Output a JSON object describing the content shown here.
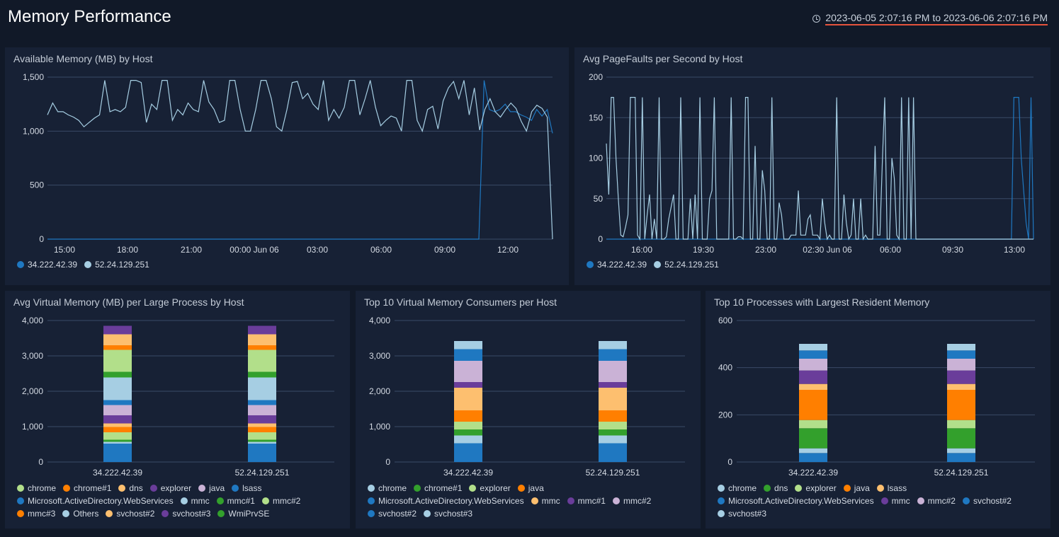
{
  "header": {
    "title": "Memory Performance",
    "time_range": "2023-06-05 2:07:16 PM to 2023-06-06 2:07:16 PM"
  },
  "colors": {
    "host1": "#1f78c1",
    "host2": "#a6cee3"
  },
  "panels": {
    "available_memory": {
      "title": "Available Memory (MB) by Host",
      "y_ticks": [
        "1,500",
        "1,000",
        "500",
        "0"
      ],
      "x_ticks": [
        "15:00",
        "18:00",
        "21:00",
        "00:00 Jun 06",
        "03:00",
        "06:00",
        "09:00",
        "12:00"
      ],
      "legend": [
        "34.222.42.39",
        "52.24.129.251"
      ]
    },
    "page_faults": {
      "title": "Avg PageFaults per Second by Host",
      "y_ticks": [
        "200",
        "150",
        "100",
        "50",
        "0"
      ],
      "x_ticks": [
        "16:00",
        "19:30",
        "23:00",
        "02:30 Jun 06",
        "06:00",
        "09:30",
        "13:00"
      ],
      "legend": [
        "34.222.42.39",
        "52.24.129.251"
      ]
    },
    "virtual_memory": {
      "title": "Avg Virtual Memory (MB) per Large Process by Host",
      "y_ticks": [
        "4,000",
        "3,000",
        "2,000",
        "1,000",
        "0"
      ],
      "categories": [
        "34.222.42.39",
        "52.24.129.251"
      ],
      "legend": [
        "chrome",
        "chrome#1",
        "dns",
        "explorer",
        "java",
        "lsass",
        "Microsoft.ActiveDirectory.WebServices",
        "mmc",
        "mmc#1",
        "mmc#2",
        "mmc#3",
        "Others",
        "svchost#2",
        "svchost#3",
        "WmiPrvSE"
      ]
    },
    "top10_virtual": {
      "title": "Top 10 Virtual Memory Consumers per Host",
      "y_ticks": [
        "4,000",
        "3,000",
        "2,000",
        "1,000",
        "0"
      ],
      "categories": [
        "34.222.42.39",
        "52.24.129.251"
      ],
      "legend": [
        "chrome",
        "chrome#1",
        "explorer",
        "java",
        "Microsoft.ActiveDirectory.WebServices",
        "mmc",
        "mmc#1",
        "mmc#2",
        "svchost#2",
        "svchost#3"
      ]
    },
    "top10_resident": {
      "title": "Top 10 Processes with Largest Resident Memory",
      "y_ticks": [
        "600",
        "400",
        "200",
        "0"
      ],
      "categories": [
        "34.222.42.39",
        "52.24.129.251"
      ],
      "legend": [
        "chrome",
        "dns",
        "explorer",
        "java",
        "lsass",
        "Microsoft.ActiveDirectory.WebServices",
        "mmc",
        "mmc#2",
        "svchost#2",
        "svchost#3"
      ]
    }
  },
  "chart_data": [
    {
      "type": "line",
      "title": "Available Memory (MB) by Host",
      "ylim": [
        0,
        1500
      ],
      "series": [
        {
          "name": "34.222.42.39",
          "color": "#1f78c1",
          "values": [
            0,
            0,
            0,
            0,
            0,
            0,
            0,
            0,
            0,
            0,
            0,
            0,
            0,
            0,
            0,
            0,
            0,
            0,
            0,
            0,
            0,
            0,
            0,
            0,
            0,
            0,
            0,
            0,
            0,
            0,
            0,
            0,
            0,
            0,
            0,
            0,
            0,
            0,
            0,
            0,
            0,
            0,
            0,
            0,
            0,
            0,
            0,
            0,
            0,
            0,
            0,
            0,
            0,
            0,
            0,
            0,
            0,
            0,
            0,
            0,
            0,
            0,
            0,
            0,
            0,
            0,
            0,
            0,
            0,
            0,
            0,
            0,
            0,
            0,
            0,
            0,
            0,
            0,
            0,
            0,
            0,
            0,
            0,
            1470,
            1200,
            1180,
            1200,
            1250,
            1180,
            1180,
            1150,
            1130,
            1100,
            1200,
            1140,
            1200,
            980
          ]
        },
        {
          "name": "52.24.129.251",
          "color": "#a6cee3",
          "values": [
            1150,
            1260,
            1180,
            1180,
            1150,
            1130,
            1100,
            1040,
            1080,
            1120,
            1150,
            1470,
            1180,
            1200,
            1180,
            1220,
            1470,
            1470,
            1450,
            1080,
            1250,
            1200,
            1470,
            1470,
            1100,
            1200,
            1150,
            1260,
            1200,
            1180,
            1470,
            1270,
            1200,
            1080,
            1100,
            1470,
            1470,
            1200,
            1000,
            1000,
            1200,
            1470,
            1470,
            1300,
            1040,
            1000,
            1200,
            1450,
            1460,
            1300,
            1350,
            1250,
            1200,
            1470,
            1100,
            1200,
            1120,
            1220,
            1470,
            1470,
            1150,
            1300,
            1470,
            1220,
            1050,
            1100,
            1140,
            1120,
            1000,
            1470,
            1470,
            1100,
            1000,
            1200,
            1230,
            1020,
            1280,
            1400,
            1460,
            1300,
            1470,
            1150,
            1400,
            1010,
            1200,
            1300,
            1180,
            1130,
            1200,
            1260,
            1210,
            1090,
            1000,
            1180,
            1240,
            1210,
            1130,
            0
          ]
        }
      ]
    },
    {
      "type": "line",
      "title": "Avg PageFaults per Second by Host",
      "ylim": [
        0,
        200
      ],
      "series": [
        {
          "name": "34.222.42.39",
          "color": "#1f78c1",
          "values": [
            0,
            0,
            0,
            0,
            0,
            0,
            0,
            0,
            0,
            0,
            0,
            0,
            0,
            0,
            0,
            0,
            0,
            0,
            0,
            0,
            0,
            0,
            0,
            0,
            0,
            0,
            0,
            0,
            0,
            0,
            0,
            0,
            0,
            0,
            0,
            0,
            0,
            0,
            0,
            0,
            0,
            0,
            0,
            0,
            0,
            0,
            0,
            0,
            0,
            0,
            0,
            0,
            0,
            0,
            0,
            0,
            0,
            0,
            0,
            0,
            0,
            0,
            0,
            0,
            0,
            0,
            0,
            0,
            0,
            0,
            0,
            0,
            0,
            0,
            0,
            0,
            0,
            0,
            0,
            0,
            0,
            0,
            0,
            0,
            0,
            0,
            0,
            0,
            0,
            0,
            0,
            0,
            0,
            0,
            0,
            0,
            0,
            0,
            0,
            0,
            0,
            0,
            0,
            0,
            0,
            0,
            0,
            0,
            0,
            0,
            0,
            0,
            0,
            0,
            0,
            0,
            0,
            0,
            0,
            0,
            0,
            0,
            0,
            0,
            0,
            0,
            0,
            0,
            0,
            0,
            0,
            0,
            0,
            0,
            0,
            0,
            0,
            0,
            0,
            0,
            0,
            0,
            0,
            0,
            0,
            0,
            0,
            0,
            0,
            0,
            0,
            0,
            0,
            0,
            0,
            0,
            0,
            0,
            0,
            0,
            0,
            0,
            0,
            0,
            0,
            0,
            175,
            175,
            175,
            100,
            60,
            20,
            0,
            175,
            0
          ]
        },
        {
          "name": "52.24.129.251",
          "color": "#a6cee3",
          "values": [
            118,
            55,
            175,
            175,
            100,
            50,
            5,
            3,
            15,
            30,
            175,
            175,
            175,
            5,
            0,
            175,
            0,
            30,
            55,
            0,
            25,
            0,
            175,
            0,
            0,
            3,
            25,
            40,
            55,
            0,
            0,
            175,
            0,
            0,
            0,
            50,
            0,
            55,
            0,
            175,
            0,
            0,
            0,
            50,
            60,
            175,
            0,
            0,
            0,
            0,
            0,
            0,
            175,
            0,
            0,
            3,
            3,
            0,
            175,
            175,
            0,
            0,
            115,
            0,
            0,
            85,
            60,
            0,
            0,
            175,
            0,
            0,
            45,
            30,
            0,
            0,
            0,
            5,
            5,
            5,
            60,
            5,
            5,
            5,
            25,
            30,
            5,
            5,
            5,
            0,
            50,
            20,
            0,
            5,
            0,
            0,
            175,
            0,
            0,
            55,
            20,
            0,
            5,
            50,
            0,
            0,
            50,
            0,
            5,
            0,
            0,
            0,
            115,
            5,
            5,
            95,
            175,
            0,
            0,
            100,
            75,
            5,
            0,
            175,
            0,
            0,
            175,
            0,
            175,
            0,
            0,
            0,
            0,
            0,
            0,
            0,
            0,
            0,
            0,
            0,
            0,
            0,
            0,
            0,
            0,
            0,
            0,
            0,
            0,
            0,
            0,
            0,
            0,
            0,
            0,
            0,
            0,
            0,
            0,
            0,
            0,
            0,
            0,
            0,
            0,
            0,
            0,
            0,
            0,
            0,
            0,
            0,
            0,
            0,
            0,
            0,
            0,
            0,
            0
          ]
        }
      ]
    },
    {
      "type": "bar",
      "stacked": true,
      "title": "Avg Virtual Memory (MB) per Large Process by Host",
      "categories": [
        "34.222.42.39",
        "52.24.129.251"
      ],
      "ylim": [
        0,
        4000
      ],
      "series": [
        {
          "name": "Microsoft.ActiveDirectory.WebServices",
          "color": "#1f78c1",
          "values": [
            520,
            520
          ]
        },
        {
          "name": "mmc",
          "color": "#a6cee3",
          "values": [
            50,
            50
          ]
        },
        {
          "name": "WmiPrvSE",
          "color": "#33a02c",
          "values": [
            60,
            60
          ]
        },
        {
          "name": "chrome",
          "color": "#b2df8a",
          "values": [
            210,
            210
          ]
        },
        {
          "name": "chrome#1",
          "color": "#ff7f00",
          "values": [
            150,
            150
          ]
        },
        {
          "name": "dns",
          "color": "#fdbf6f",
          "values": [
            100,
            100
          ]
        },
        {
          "name": "explorer",
          "color": "#6a3d9a",
          "values": [
            230,
            230
          ]
        },
        {
          "name": "java",
          "color": "#cab2d6",
          "values": [
            290,
            290
          ]
        },
        {
          "name": "lsass",
          "color": "#1f78c1",
          "values": [
            140,
            140
          ]
        },
        {
          "name": "Others",
          "color": "#a6cee3",
          "values": [
            640,
            640
          ]
        },
        {
          "name": "mmc#1",
          "color": "#33a02c",
          "values": [
            160,
            160
          ]
        },
        {
          "name": "mmc#2",
          "color": "#b2df8a",
          "values": [
            620,
            620
          ]
        },
        {
          "name": "mmc#3",
          "color": "#ff7f00",
          "values": [
            130,
            130
          ]
        },
        {
          "name": "svchost#2",
          "color": "#fdbf6f",
          "values": [
            310,
            310
          ]
        },
        {
          "name": "svchost#3",
          "color": "#6a3d9a",
          "values": [
            240,
            240
          ]
        }
      ]
    },
    {
      "type": "bar",
      "stacked": true,
      "title": "Top 10 Virtual Memory Consumers per Host",
      "categories": [
        "34.222.42.39",
        "52.24.129.251"
      ],
      "ylim": [
        0,
        4000
      ],
      "series": [
        {
          "name": "Microsoft.ActiveDirectory.WebServices",
          "color": "#1f78c1",
          "values": [
            530,
            530
          ]
        },
        {
          "name": "chrome",
          "color": "#a6cee3",
          "values": [
            220,
            220
          ]
        },
        {
          "name": "chrome#1",
          "color": "#33a02c",
          "values": [
            170,
            170
          ]
        },
        {
          "name": "explorer",
          "color": "#b2df8a",
          "values": [
            220,
            220
          ]
        },
        {
          "name": "java",
          "color": "#ff7f00",
          "values": [
            320,
            320
          ]
        },
        {
          "name": "mmc",
          "color": "#fdbf6f",
          "values": [
            640,
            640
          ]
        },
        {
          "name": "mmc#1",
          "color": "#6a3d9a",
          "values": [
            160,
            160
          ]
        },
        {
          "name": "mmc#2",
          "color": "#cab2d6",
          "values": [
            600,
            600
          ]
        },
        {
          "name": "svchost#2",
          "color": "#1f78c1",
          "values": [
            330,
            330
          ]
        },
        {
          "name": "svchost#3",
          "color": "#a6cee3",
          "values": [
            230,
            230
          ]
        }
      ]
    },
    {
      "type": "bar",
      "stacked": true,
      "title": "Top 10 Processes with Largest Resident Memory",
      "categories": [
        "34.222.42.39",
        "52.24.129.251"
      ],
      "ylim": [
        0,
        600
      ],
      "series": [
        {
          "name": "Microsoft.ActiveDirectory.WebServices",
          "color": "#1f78c1",
          "values": [
            38,
            38
          ]
        },
        {
          "name": "chrome",
          "color": "#a6cee3",
          "values": [
            20,
            20
          ]
        },
        {
          "name": "dns",
          "color": "#33a02c",
          "values": [
            85,
            85
          ]
        },
        {
          "name": "explorer",
          "color": "#b2df8a",
          "values": [
            35,
            35
          ]
        },
        {
          "name": "java",
          "color": "#ff7f00",
          "values": [
            128,
            128
          ]
        },
        {
          "name": "lsass",
          "color": "#fdbf6f",
          "values": [
            25,
            25
          ]
        },
        {
          "name": "mmc",
          "color": "#6a3d9a",
          "values": [
            57,
            57
          ]
        },
        {
          "name": "mmc#2",
          "color": "#cab2d6",
          "values": [
            50,
            50
          ]
        },
        {
          "name": "svchost#2",
          "color": "#1f78c1",
          "values": [
            35,
            35
          ]
        },
        {
          "name": "svchost#3",
          "color": "#a6cee3",
          "values": [
            28,
            28
          ]
        }
      ]
    }
  ]
}
